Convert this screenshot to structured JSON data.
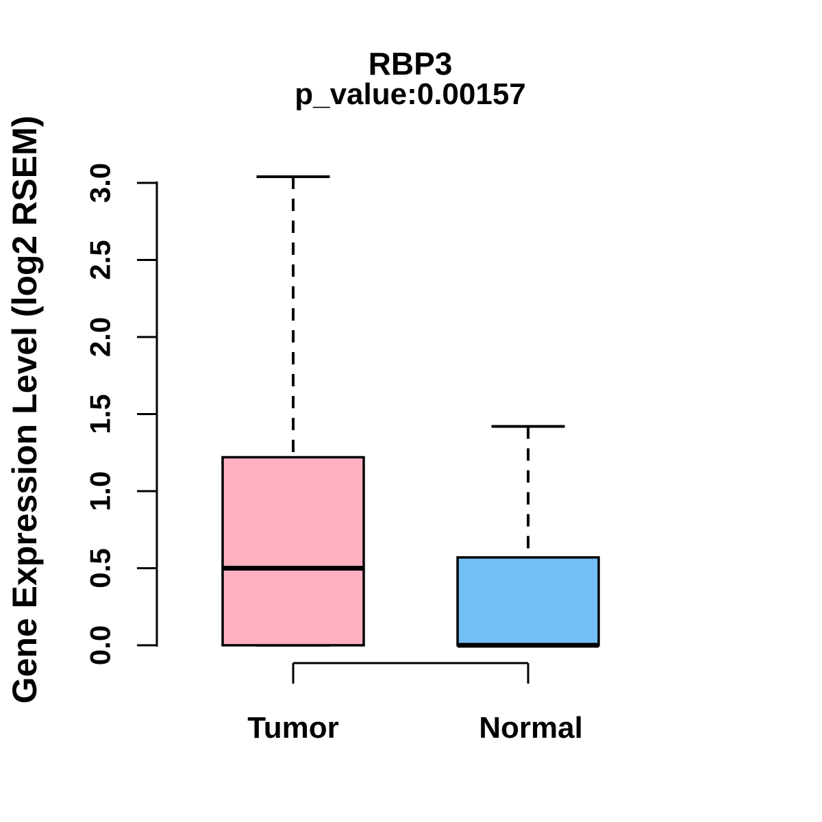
{
  "figure": {
    "background_color": "#ffffff",
    "ink_color": "#000000"
  },
  "chart_data": {
    "type": "boxplot",
    "title": "RBP3",
    "subtitle": "p_value:0.00157",
    "xlabel": "",
    "ylabel": "Gene Expression Level (log2 RSEM)",
    "ylim": [
      0.0,
      3.05
    ],
    "yticks": [
      0.0,
      0.5,
      1.0,
      1.5,
      2.0,
      2.5,
      3.0
    ],
    "ytick_labels": [
      "0.0",
      "0.5",
      "1.0",
      "1.5",
      "2.0",
      "2.5",
      "3.0"
    ],
    "grid": false,
    "legend": "none",
    "categories": [
      "Tumor",
      "Normal"
    ],
    "groups": [
      {
        "label": "Tumor",
        "color": "#FFB1C1",
        "whisker_low": 0.0,
        "q1": 0.0,
        "median": 0.5,
        "q3": 1.22,
        "whisker_high": 3.04,
        "outliers": []
      },
      {
        "label": "Normal",
        "color": "#74BFF7",
        "whisker_low": 0.0,
        "q1": 0.0,
        "median": 0.0,
        "q3": 0.57,
        "whisker_high": 1.42,
        "outliers": []
      }
    ]
  }
}
